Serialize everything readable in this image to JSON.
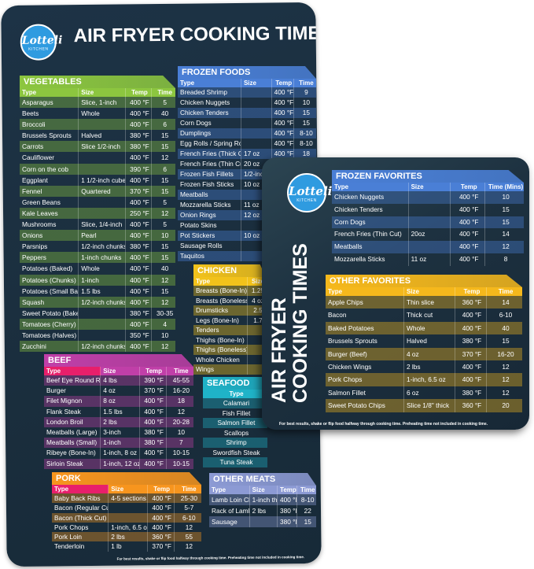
{
  "big_card": {
    "logo": {
      "brand": "Lotteli",
      "sub": "KITCHEN"
    },
    "title": "AIR FRYER COOKING TIMES",
    "footnote": "For best results, shake or flip food halfway through cooking time. Preheating time not included in cooking time.",
    "tables": {
      "vegetables": {
        "title": "VEGETABLES",
        "color": "#8cc63f",
        "headers": [
          "Type",
          "Size",
          "Temp",
          "Time (Mins)"
        ],
        "rows": [
          [
            "Asparagus",
            "Slice, 1-inch",
            "400 °F",
            "5"
          ],
          [
            "Beets",
            "Whole",
            "400 °F",
            "40"
          ],
          [
            "Broccoli",
            "",
            "400 °F",
            "6"
          ],
          [
            "Brussels Sprouts",
            "Halved",
            "380 °F",
            "15"
          ],
          [
            "Carrots",
            "Slice 1/2-inch",
            "380 °F",
            "15"
          ],
          [
            "Cauliflower",
            "",
            "400 °F",
            "12"
          ],
          [
            "Corn on the cob",
            "",
            "390 °F",
            "6"
          ],
          [
            "Eggplant",
            "1 1/2-inch cubes",
            "400 °F",
            "15"
          ],
          [
            "Fennel",
            "Quartered",
            "370 °F",
            "15"
          ],
          [
            "Green Beans",
            "",
            "400 °F",
            "5"
          ],
          [
            "Kale Leaves",
            "",
            "250 °F",
            "12"
          ],
          [
            "Mushrooms",
            "Slice, 1/4-inch",
            "400 °F",
            "5"
          ],
          [
            "Onions",
            "Pearl",
            "400 °F",
            "10"
          ],
          [
            "Parsnips",
            "1/2-inch chunks",
            "380 °F",
            "15"
          ],
          [
            "Peppers",
            "1-inch chunks",
            "400 °F",
            "15"
          ],
          [
            "Potatoes (Baked)",
            "Whole",
            "400 °F",
            "40"
          ],
          [
            "Potatoes (Chunks)",
            "1-inch",
            "400 °F",
            "12"
          ],
          [
            "Potatoes (Small Baby)",
            "1.5 lbs",
            "400 °F",
            "15"
          ],
          [
            "Squash",
            "1/2-inch chunks",
            "400 °F",
            "12"
          ],
          [
            "Sweet Potato (Baked)",
            "",
            "380 °F",
            "30-35"
          ],
          [
            "Tomatoes (Cherry)",
            "",
            "400 °F",
            "4"
          ],
          [
            "Tomatoes (Halves)",
            "",
            "350 °F",
            "10"
          ],
          [
            "Zucchini",
            "1/2-inch chunks",
            "400 °F",
            "12"
          ]
        ]
      },
      "frozen_foods": {
        "title": "FROZEN FOODS",
        "color": "#4a7fd6",
        "headers": [
          "Type",
          "Size",
          "Temp",
          "Time (Mins)"
        ],
        "rows": [
          [
            "Breaded Shrimp",
            "",
            "400 °F",
            "9"
          ],
          [
            "Chicken Nuggets",
            "",
            "400 °F",
            "10"
          ],
          [
            "Chicken Tenders",
            "",
            "400 °F",
            "15"
          ],
          [
            "Corn Dogs",
            "",
            "400 °F",
            "15"
          ],
          [
            "Dumplings",
            "",
            "400 °F",
            "8-10"
          ],
          [
            "Egg Rolls / Spring Rolls",
            "",
            "400 °F",
            "8-10"
          ],
          [
            "French Fries (Thick Cut)",
            "17 oz",
            "400 °F",
            "18"
          ],
          [
            "French Fries (Thin Cut)",
            "20 oz",
            "400 °F",
            "14"
          ],
          [
            "Frozen Fish Fillets",
            "1/2-inch, 10oz",
            "",
            ""
          ],
          [
            "Frozen Fish Sticks",
            "10 oz",
            "",
            ""
          ],
          [
            "Meatballs",
            "",
            "",
            ""
          ],
          [
            "Mozzarella Sticks",
            "11 oz",
            "",
            ""
          ],
          [
            "Onion Rings",
            "12 oz",
            "",
            ""
          ],
          [
            "Potato Skins",
            "",
            "",
            ""
          ],
          [
            "Pot Stickers",
            "10 oz",
            "",
            ""
          ],
          [
            "Sausage Rolls",
            "",
            "",
            ""
          ],
          [
            "Taquitos",
            "",
            "",
            ""
          ]
        ]
      },
      "chicken": {
        "title": "CHICKEN",
        "color": "#f2c21b",
        "headers": [
          "Type",
          "Size"
        ],
        "rows": [
          [
            "Breasts (Bone-In)",
            "1.25"
          ],
          [
            "Breasts (Boneless)",
            "4 oz"
          ],
          [
            "Drumsticks",
            "2.5"
          ],
          [
            "Legs (Bone-In)",
            "1.7"
          ],
          [
            "Tenders",
            ""
          ],
          [
            "Thighs (Bone-In)",
            ""
          ],
          [
            "Thighs (Boneless)",
            ""
          ],
          [
            "Whole Chicken",
            ""
          ],
          [
            "Wings",
            ""
          ]
        ]
      },
      "seafood": {
        "title": "SEAFOOD",
        "color": "#1fb3c8",
        "headers": [
          "Type"
        ],
        "rows": [
          [
            "Calamari"
          ],
          [
            "Fish Fillet"
          ],
          [
            "Salmon Fillet"
          ],
          [
            "Scallops"
          ],
          [
            "Shrimp"
          ],
          [
            "Swordfish Steak"
          ],
          [
            "Tuna Steak"
          ]
        ]
      },
      "beef": {
        "title": "BEEF",
        "color": "#c03fa8",
        "type_color": "#e81f6b",
        "headers": [
          "Type",
          "Size",
          "Temp",
          "Time (Mins)"
        ],
        "rows": [
          [
            "Beef Eye Round Roast",
            "4 lbs",
            "390 °F",
            "45-55"
          ],
          [
            "Burger",
            "4 oz",
            "370 °F",
            "16-20"
          ],
          [
            "Filet Mignon",
            "8 oz",
            "400 °F",
            "18"
          ],
          [
            "Flank Steak",
            "1.5 lbs",
            "400 °F",
            "12"
          ],
          [
            "London Broil",
            "2 lbs",
            "400 °F",
            "20-28"
          ],
          [
            "Meatballs (Large)",
            "3-inch",
            "380 °F",
            "10"
          ],
          [
            "Meatballs (Small)",
            "1-inch",
            "380 °F",
            "7"
          ],
          [
            "Ribeye (Bone-In)",
            "1-inch, 8 oz",
            "400 °F",
            "10-15"
          ],
          [
            "Sirloin Steak",
            "1-inch, 12 oz",
            "400 °F",
            "10-15"
          ]
        ]
      },
      "pork": {
        "title": "PORK",
        "color": "#f7951e",
        "type_color": "#e81f6b",
        "headers": [
          "Type",
          "Size",
          "Temp",
          "Time (Mins)"
        ],
        "rows": [
          [
            "Baby Back Ribs",
            "4-5 sections",
            "400 °F",
            "25-30"
          ],
          [
            "Bacon (Regular Cut)",
            "",
            "400 °F",
            "5-7"
          ],
          [
            "Bacon (Thick Cut)",
            "",
            "400 °F",
            "6-10"
          ],
          [
            "Pork Chops",
            "1-inch, 6.5 oz",
            "400 °F",
            "12"
          ],
          [
            "Pork Loin",
            "2 lbs",
            "360 °F",
            "55"
          ],
          [
            "Tenderloin",
            "1 lb",
            "370 °F",
            "12"
          ]
        ]
      },
      "other_meats": {
        "title": "OTHER MEATS",
        "color": "#8c9ad4",
        "headers": [
          "Type",
          "Size",
          "Temp",
          "Time (Mins)"
        ],
        "rows": [
          [
            "Lamb Loin Chops",
            "1-inch thick",
            "400 °F",
            "8-10"
          ],
          [
            "Rack of Lamb",
            "2 lbs",
            "380 °F",
            "22"
          ],
          [
            "Sausage",
            "",
            "380 °F",
            "15"
          ]
        ]
      }
    }
  },
  "small_card": {
    "logo": {
      "brand": "Lotteli",
      "sub": "KITCHEN"
    },
    "title": "AIR FRYER COOKING TIMES",
    "title_lines": [
      "AIR FRYER",
      "COOKING TIMES"
    ],
    "footnote": "For best results, shake or flip food halfway through cooking time. Preheating time not included in cooking time.",
    "tables": {
      "frozen_favorites": {
        "title": "FROZEN FAVORITES",
        "color": "#4a7fd6",
        "headers": [
          "Type",
          "Size",
          "Temp",
          "Time (Mins)"
        ],
        "rows": [
          [
            "Chicken Nuggets",
            "",
            "400 °F",
            "10"
          ],
          [
            "Chicken Tenders",
            "",
            "400 °F",
            "15"
          ],
          [
            "Corn Dogs",
            "",
            "400 °F",
            "15"
          ],
          [
            "French Fries (Thin Cut)",
            "20oz",
            "400 °F",
            "14"
          ],
          [
            "Meatballs",
            "",
            "400 °F",
            "12"
          ],
          [
            "Mozzarella Sticks",
            "11 oz",
            "400 °F",
            "8"
          ]
        ]
      },
      "other_favorites": {
        "title": "OTHER FAVORITES",
        "color": "#f5b81c",
        "headers": [
          "Type",
          "Size",
          "Temp",
          "Time (Mins)"
        ],
        "rows": [
          [
            "Apple Chips",
            "Thin slice",
            "360 °F",
            "14"
          ],
          [
            "Bacon",
            "Thick cut",
            "400 °F",
            "6-10"
          ],
          [
            "Baked Potatoes",
            "Whole",
            "400 °F",
            "40"
          ],
          [
            "Brussels Sprouts",
            "Halved",
            "380 °F",
            "15"
          ],
          [
            "Burger (Beef)",
            "4 oz",
            "370 °F",
            "16-20"
          ],
          [
            "Chicken Wings",
            "2 lbs",
            "400 °F",
            "12"
          ],
          [
            "Pork Chops",
            "1-inch, 6.5 oz",
            "400 °F",
            "12"
          ],
          [
            "Salmon Fillet",
            "6 oz",
            "380 °F",
            "12"
          ],
          [
            "Sweet Potato Chips",
            "Slice 1/8\" thick",
            "360 °F",
            "20"
          ]
        ]
      }
    }
  }
}
